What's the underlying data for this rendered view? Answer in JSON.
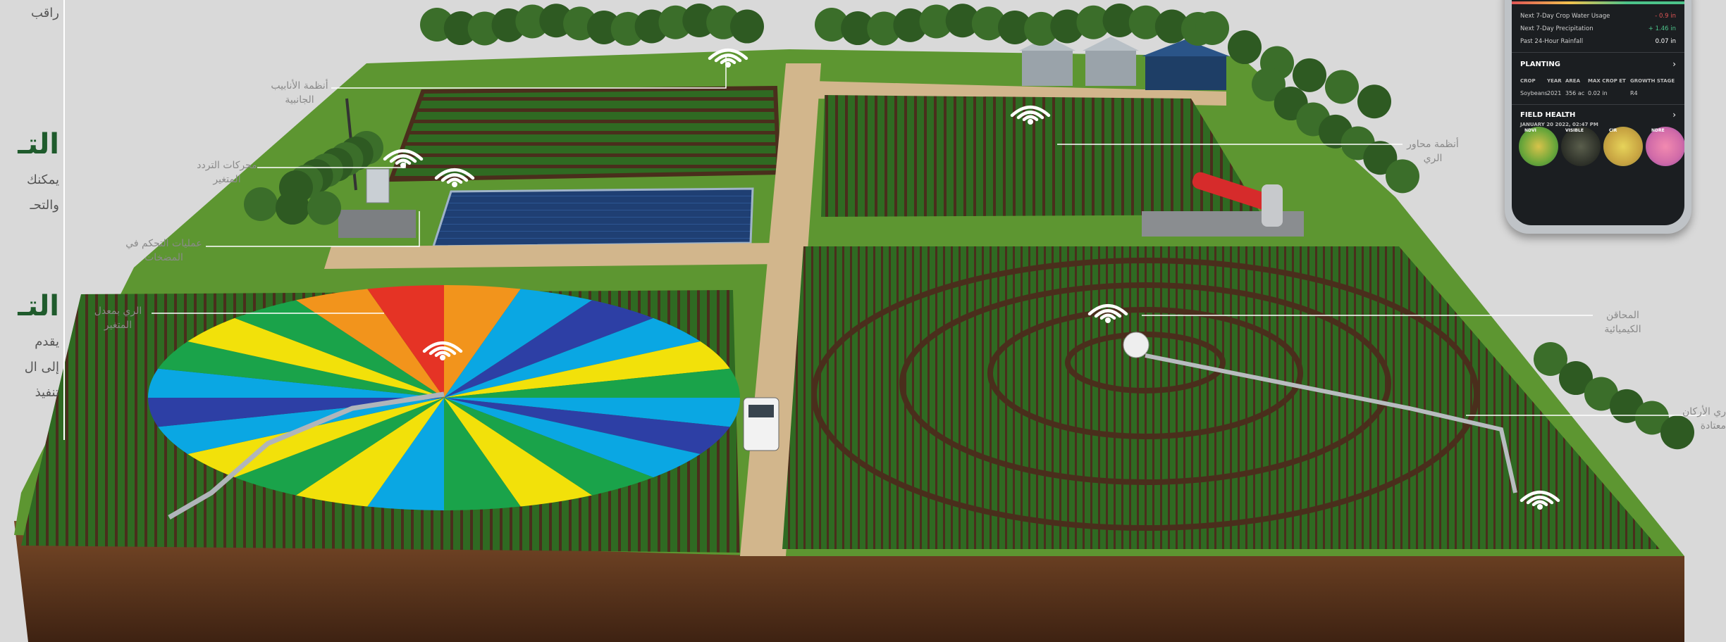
{
  "left_panel": {
    "top_word": "راقب",
    "heading_1": "التـ",
    "body_1_line1": "يمكنك",
    "body_1_line2": "والتحـ",
    "heading_2": "التـ",
    "body_2_line1": "يقدم",
    "body_2_line2": "إلى ال",
    "body_2_line3": "تنفيذ"
  },
  "callouts": {
    "side_pipes": [
      "أنظمة الأنابيب",
      "الجانبية"
    ],
    "vfd": [
      "محركات التردد",
      "المتغير"
    ],
    "pump_control": [
      "عمليات التحكم في",
      "المضخات"
    ],
    "vri": [
      "الري بمعدل",
      "المتغير"
    ],
    "pivot": [
      "أنظمة محاور",
      "الري"
    ],
    "chemigation": [
      "المحاقن",
      "الكيميائية"
    ],
    "corner": [
      "ري الأركان",
      "معتادة"
    ]
  },
  "phone": {
    "rows": [
      {
        "label": "Next 7-Day Crop Water Usage",
        "value": "- 0.9 in",
        "color": "#e05555"
      },
      {
        "label": "Next 7-Day Precipitation",
        "value": "+ 1.46 in",
        "color": "#4cc38a"
      },
      {
        "label": "Past 24-Hour Rainfall",
        "value": "0.07 in",
        "color": "#ffffff"
      }
    ],
    "planting": {
      "title": "PLANTING",
      "headers": [
        "CROP",
        "YEAR",
        "AREA",
        "MAX CROP ET",
        "GROWTH STAGE"
      ],
      "values": [
        "Soybeans",
        "2021",
        "356 ac",
        "0.02 in",
        "R4"
      ]
    },
    "field_health": {
      "title": "FIELD HEALTH",
      "date": "JANUARY 20 2022, 02:47 PM",
      "thumb_labels": [
        "NDVI",
        "VISIBLE",
        "CIR",
        "NDRE"
      ]
    }
  },
  "colors": {
    "background": "#d9d9d9",
    "grass": "#5d9631",
    "crop_dark": "#2f6a22",
    "crop_row": "#4a2e1c",
    "soil": "#6b3f22",
    "road": "#d2b68c",
    "brand_green": "#1f5b2c"
  },
  "vri_colors": [
    "#0aa7e3",
    "#2d3fa5",
    "#1aa34a",
    "#f2e10a",
    "#f2941c",
    "#e53325"
  ]
}
